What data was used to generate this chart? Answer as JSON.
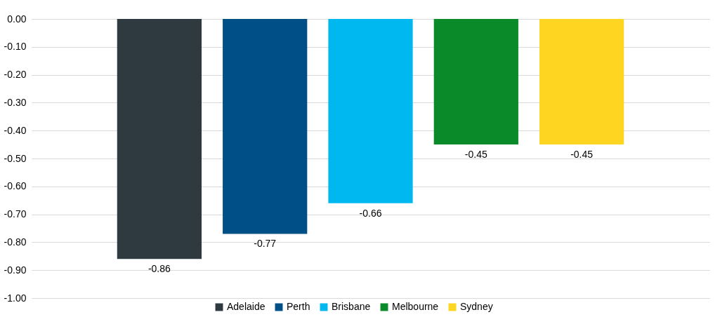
{
  "chart_data": {
    "type": "bar",
    "categories": [
      null
    ],
    "series": [
      {
        "name": "Adelaide",
        "color": "#2e3a40",
        "values": [
          -0.86
        ]
      },
      {
        "name": "Perth",
        "color": "#004f87",
        "values": [
          -0.77
        ]
      },
      {
        "name": "Brisbane",
        "color": "#00b8f0",
        "values": [
          -0.66
        ]
      },
      {
        "name": "Melbourne",
        "color": "#0a8a28",
        "values": [
          -0.45
        ]
      },
      {
        "name": "Sydney",
        "color": "#fed521",
        "values": [
          -0.45
        ]
      }
    ],
    "ylim": [
      -1,
      0
    ],
    "yticks": [
      {
        "value": 0,
        "label": "0.00"
      },
      {
        "value": -0.1,
        "label": "-0.10"
      },
      {
        "value": -0.2,
        "label": "-0.20"
      },
      {
        "value": -0.3,
        "label": "-0.30"
      },
      {
        "value": -0.4,
        "label": "-0.40"
      },
      {
        "value": -0.5,
        "label": "-0.50"
      },
      {
        "value": -0.6,
        "label": "-0.60"
      },
      {
        "value": -0.7,
        "label": "-0.70"
      },
      {
        "value": -0.8,
        "label": "-0.80"
      },
      {
        "value": -0.9,
        "label": "-0.90"
      },
      {
        "value": -1,
        "label": "-1.00"
      }
    ],
    "grid": "y",
    "legend": "bottom",
    "data_labels": true
  }
}
